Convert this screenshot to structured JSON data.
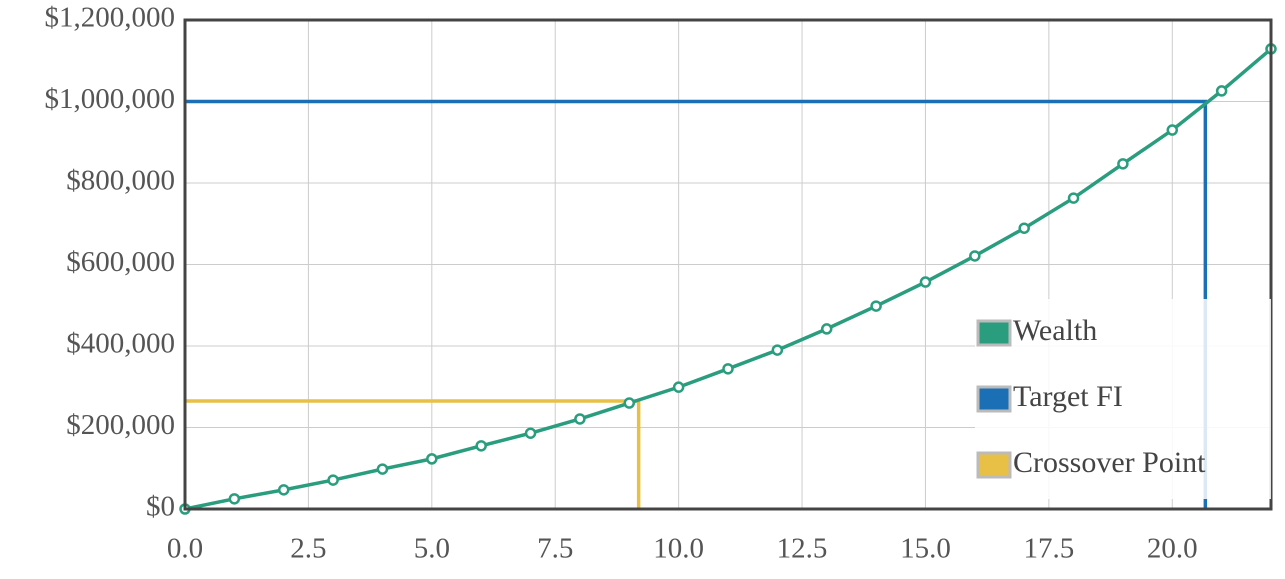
{
  "chart_data": {
    "type": "line",
    "xlim": [
      0,
      22
    ],
    "xticks": [
      {
        "value": 0,
        "label": "0.0"
      },
      2.5,
      {
        "value": 5,
        "label": "5.0"
      },
      7.5,
      {
        "value": 10,
        "label": "10.0"
      },
      12.5,
      {
        "value": 15,
        "label": "15.0"
      },
      17.5,
      {
        "value": 20,
        "label": "20.0"
      }
    ],
    "ylim": [
      0,
      1200000
    ],
    "yticks": [
      {
        "value": 0,
        "label": "$0"
      },
      {
        "value": 200000,
        "label": "$200,000"
      },
      {
        "value": 400000,
        "label": "$400,000"
      },
      {
        "value": 600000,
        "label": "$600,000"
      },
      {
        "value": 800000,
        "label": "$800,000"
      },
      {
        "value": 1000000,
        "label": "$1,000,000"
      },
      {
        "value": 1200000,
        "label": "$1,200,000"
      }
    ],
    "grid": true,
    "legend": "lower right",
    "series": [
      {
        "name": "Wealth",
        "color": "#2a9d7f",
        "markers": true,
        "x": [
          0,
          1,
          2,
          3,
          4,
          5,
          6,
          7,
          8,
          9,
          10,
          11,
          12,
          13,
          14,
          15,
          16,
          17,
          18,
          19,
          20,
          21,
          22
        ],
        "values": [
          0,
          25000,
          47000,
          71000,
          98000,
          123000,
          155000,
          186000,
          221000,
          260000,
          299000,
          344000,
          390000,
          442000,
          498000,
          557000,
          621000,
          689000,
          763000,
          847000,
          930000,
          1026000,
          1129000
        ]
      },
      {
        "name": "Target FI",
        "color": "#1a6fb5",
        "markers": false,
        "x": [
          0,
          20.67,
          20.67
        ],
        "values": [
          1000000,
          1000000,
          0
        ]
      },
      {
        "name": "Crossover Point",
        "color": "#e9c046",
        "markers": false,
        "x": [
          0,
          9.19,
          9.19
        ],
        "values": [
          265000,
          265000,
          0
        ]
      }
    ]
  }
}
